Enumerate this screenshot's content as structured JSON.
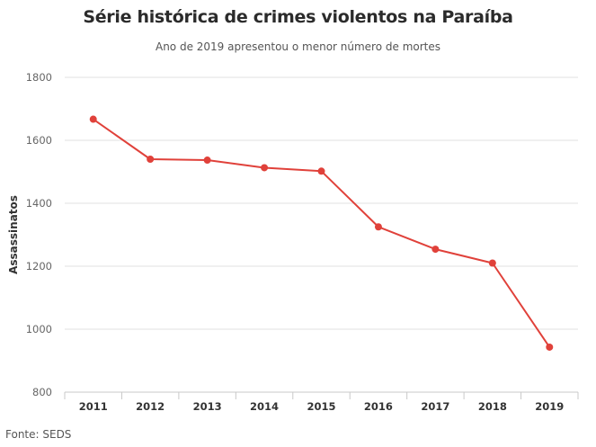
{
  "chart_data": {
    "type": "line",
    "title": "Série histórica de crimes violentos na Paraíba",
    "subtitle": "Ano de 2019 apresentou o menor número de mortes",
    "xlabel": "",
    "ylabel": "Assassinatos",
    "categories": [
      "2011",
      "2012",
      "2013",
      "2014",
      "2015",
      "2016",
      "2017",
      "2018",
      "2019"
    ],
    "series": [
      {
        "values": [
          1667,
          1540,
          1537,
          1513,
          1502,
          1325,
          1254,
          1210,
          943
        ],
        "color": "#e0413a"
      }
    ],
    "ylim": [
      800,
      1800
    ],
    "yticks": [
      800,
      1000,
      1200,
      1400,
      1600,
      1800
    ],
    "grid": true,
    "source": "Fonte: SEDS"
  }
}
